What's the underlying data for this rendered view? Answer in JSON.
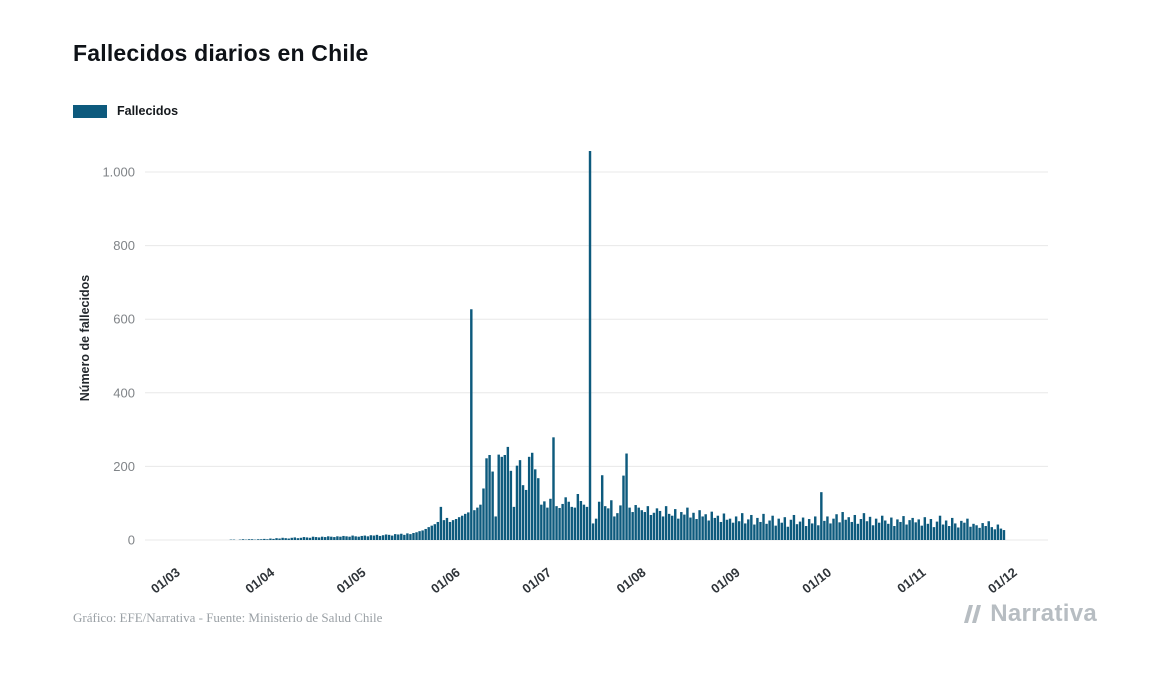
{
  "title": "Fallecidos diarios en Chile",
  "legend": {
    "label": "Fallecidos",
    "color": "#0d5a7d"
  },
  "y_axis": {
    "label": "Número de fallecidos",
    "tick_labels": [
      "0",
      "200",
      "400",
      "600",
      "800",
      "1.000"
    ],
    "tick_values": [
      0,
      200,
      400,
      600,
      800,
      1000
    ]
  },
  "x_axis": {
    "tick_labels": [
      "01/03",
      "01/04",
      "01/05",
      "01/06",
      "01/07",
      "01/08",
      "01/09",
      "01/10",
      "01/11",
      "01/12"
    ]
  },
  "footer": {
    "credit": "Gráfico: EFE/Narrativa - Fuente: Ministerio de Salud Chile",
    "logo": "Narrativa"
  },
  "chart_data": {
    "type": "bar",
    "title": "Fallecidos diarios en Chile",
    "xlabel": "",
    "ylabel": "Número de fallecidos",
    "ylim": [
      0,
      1100
    ],
    "grid": "horizontal",
    "legend_position": "top-left",
    "x_unit": "day",
    "x_range": [
      "01/03",
      "01/12"
    ],
    "x_tick_labels": [
      "01/03",
      "01/04",
      "01/05",
      "01/06",
      "01/07",
      "01/08",
      "01/09",
      "01/10",
      "01/11",
      "01/12"
    ],
    "month_day_offsets": [
      0,
      31,
      61,
      92,
      122,
      153,
      184,
      214,
      245,
      275
    ],
    "series": [
      {
        "name": "Fallecidos",
        "color": "#0d5a7d",
        "values": [
          0,
          0,
          0,
          0,
          0,
          0,
          0,
          0,
          0,
          0,
          0,
          0,
          0,
          0,
          0,
          0,
          0,
          0,
          0,
          0,
          1,
          1,
          0,
          1,
          2,
          1,
          2,
          2,
          1,
          2,
          2,
          3,
          2,
          4,
          3,
          5,
          4,
          6,
          5,
          4,
          6,
          7,
          5,
          6,
          8,
          7,
          6,
          9,
          8,
          7,
          9,
          8,
          10,
          9,
          8,
          10,
          9,
          11,
          10,
          9,
          12,
          10,
          9,
          11,
          12,
          10,
          13,
          12,
          14,
          11,
          13,
          15,
          14,
          12,
          16,
          15,
          17,
          14,
          18,
          16,
          19,
          21,
          24,
          26,
          30,
          35,
          39,
          43,
          49,
          90,
          54,
          60,
          49,
          54,
          57,
          62,
          66,
          71,
          75,
          627,
          81,
          88,
          96,
          140,
          222,
          231,
          186,
          64,
          232,
          226,
          231,
          253,
          188,
          90,
          202,
          217,
          149,
          136,
          226,
          237,
          192,
          168,
          96,
          105,
          88,
          112,
          279,
          92,
          87,
          98,
          116,
          104,
          90,
          88,
          125,
          106,
          96,
          90,
          1057,
          45,
          58,
          104,
          176,
          92,
          86,
          108,
          64,
          73,
          94,
          175,
          235,
          88,
          76,
          95,
          88,
          81,
          76,
          92,
          68,
          74,
          86,
          79,
          64,
          92,
          71,
          66,
          84,
          58,
          76,
          69,
          88,
          61,
          74,
          57,
          81,
          64,
          70,
          53,
          77,
          60,
          66,
          49,
          72,
          55,
          58,
          47,
          64,
          51,
          73,
          45,
          56,
          68,
          42,
          60,
          49,
          71,
          44,
          53,
          66,
          39,
          58,
          47,
          62,
          36,
          55,
          68,
          43,
          50,
          61,
          38,
          57,
          45,
          64,
          40,
          130,
          52,
          64,
          45,
          58,
          70,
          48,
          76,
          55,
          62,
          49,
          68,
          44,
          57,
          73,
          51,
          63,
          40,
          58,
          47,
          66,
          53,
          44,
          61,
          38,
          56,
          49,
          65,
          42,
          54,
          60,
          48,
          56,
          39,
          62,
          44,
          57,
          35,
          50,
          66,
          42,
          53,
          38,
          60,
          45,
          34,
          52,
          47,
          58,
          36,
          44,
          40,
          33,
          46,
          38,
          51,
          35,
          29,
          42,
          31,
          27
        ]
      }
    ]
  }
}
